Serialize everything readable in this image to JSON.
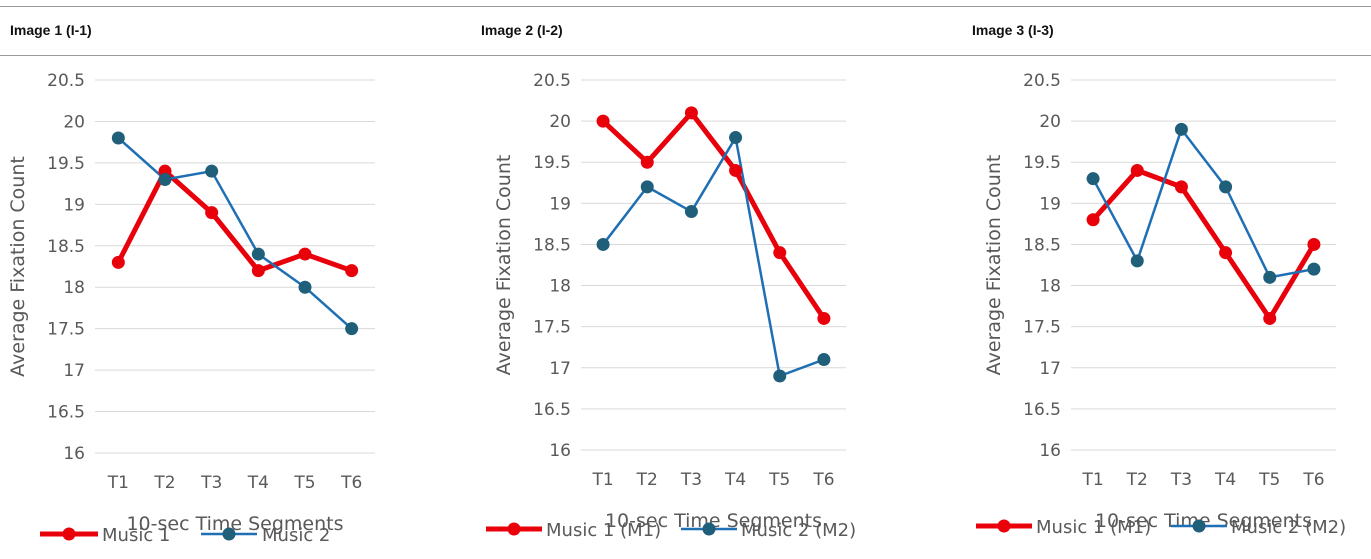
{
  "panels": [
    {
      "title": "Image 1 (I-1)"
    },
    {
      "title": "Image 2 (I-2)"
    },
    {
      "title": "Image 3 (I-3)"
    }
  ],
  "colors": {
    "music1": "#e8000b",
    "music2": "#1f6fb5",
    "marker2": "#1f5f7a",
    "grid": "#d9d9d9",
    "text": "#595959"
  },
  "chart_data": [
    {
      "type": "line",
      "categories": [
        "T1",
        "T2",
        "T3",
        "T4",
        "T5",
        "T6"
      ],
      "series": [
        {
          "name": "Music 1",
          "values": [
            18.3,
            19.4,
            18.9,
            18.2,
            18.4,
            18.2
          ]
        },
        {
          "name": "Music 2",
          "values": [
            19.8,
            19.3,
            19.4,
            18.4,
            18.0,
            17.5
          ]
        }
      ],
      "yticks": [
        "16",
        "16.5",
        "17",
        "17.5",
        "18",
        "18.5",
        "19",
        "19.5",
        "20",
        "20.5"
      ],
      "ylim": [
        16,
        20.5
      ],
      "xlabel": "10-sec Time Segments",
      "ylabel": "Average Fixation Count",
      "grid": true,
      "legend": "bottom"
    },
    {
      "type": "line",
      "categories": [
        "T1",
        "T2",
        "T3",
        "T4",
        "T5",
        "T6"
      ],
      "series": [
        {
          "name": "Music 1 (M1)",
          "values": [
            20.0,
            19.5,
            20.1,
            19.4,
            18.4,
            17.6
          ]
        },
        {
          "name": "Music 2 (M2)",
          "values": [
            18.5,
            19.2,
            18.9,
            19.8,
            16.9,
            17.1
          ]
        }
      ],
      "yticks": [
        "16",
        "16.5",
        "17",
        "17.5",
        "18",
        "18.5",
        "19",
        "19.5",
        "20",
        "20.5"
      ],
      "ylim": [
        16,
        20.5
      ],
      "xlabel": "10-sec Time Segments",
      "ylabel": "Average Fixation Count",
      "grid": true,
      "legend": "bottom"
    },
    {
      "type": "line",
      "categories": [
        "T1",
        "T2",
        "T3",
        "T4",
        "T5",
        "T6"
      ],
      "series": [
        {
          "name": "Music 1 (M1)",
          "values": [
            18.8,
            19.4,
            19.2,
            18.4,
            17.6,
            18.5
          ]
        },
        {
          "name": "Music 2 (M2)",
          "values": [
            19.3,
            18.3,
            19.9,
            19.2,
            18.1,
            18.2
          ]
        }
      ],
      "yticks": [
        "16",
        "16.5",
        "17",
        "17.5",
        "18",
        "18.5",
        "19",
        "19.5",
        "20",
        "20.5"
      ],
      "ylim": [
        16,
        20.5
      ],
      "xlabel": "10-sec Time Segments",
      "ylabel": "Average Fixation Count",
      "grid": true,
      "legend": "bottom"
    }
  ]
}
